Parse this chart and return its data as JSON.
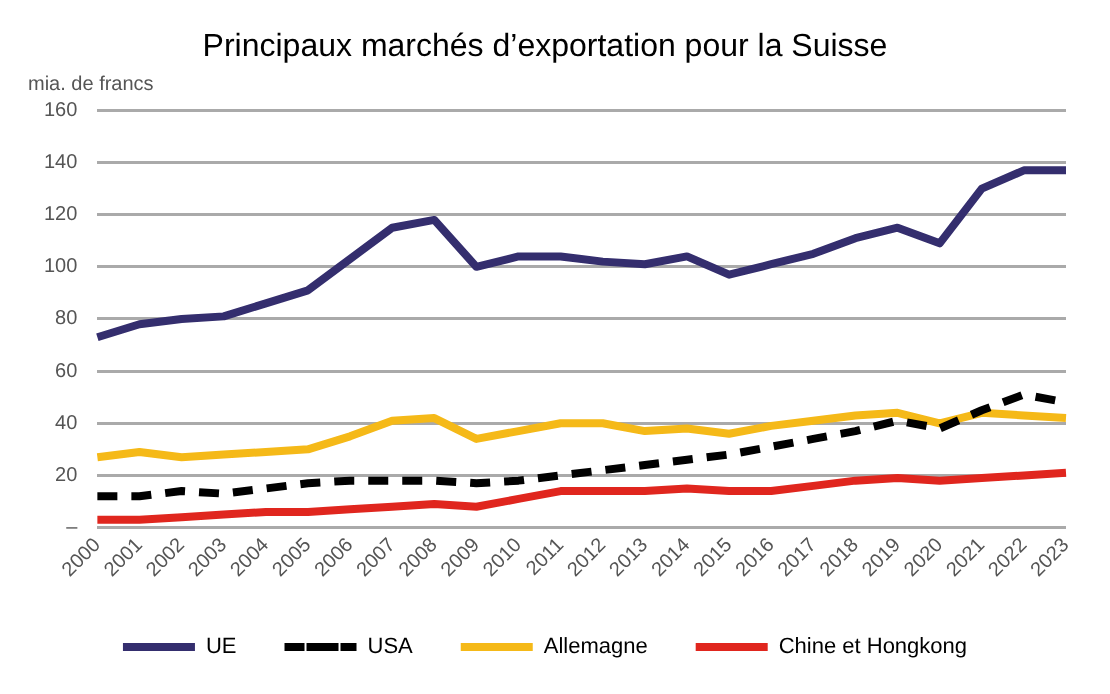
{
  "chart_data": {
    "type": "line",
    "title": "Principaux marchés d’exportation pour la Suisse",
    "ylabel": "mia. de francs",
    "categories": [
      "2000",
      "2001",
      "2002",
      "2003",
      "2004",
      "2005",
      "2006",
      "2007",
      "2008",
      "2009",
      "2010",
      "2011",
      "2012",
      "2013",
      "2014",
      "2015",
      "2016",
      "2017",
      "2018",
      "2019",
      "2020",
      "2021",
      "2022",
      "2023"
    ],
    "series": [
      {
        "name": "UE",
        "color": "#342e6e",
        "values": [
          73,
          78,
          80,
          81,
          86,
          91,
          103,
          115,
          118,
          100,
          104,
          104,
          102,
          101,
          104,
          97,
          101,
          105,
          111,
          115,
          109,
          130,
          137,
          137
        ]
      },
      {
        "name": "USA",
        "color": "#000000",
        "line_style": "dashed",
        "values": [
          12,
          12,
          14,
          13,
          15,
          17,
          18,
          18,
          18,
          17,
          18,
          20,
          22,
          24,
          26,
          28,
          31,
          34,
          37,
          41,
          38,
          45,
          51,
          48
        ]
      },
      {
        "name": "Allemagne",
        "color": "#f5b918",
        "values": [
          27,
          29,
          27,
          28,
          29,
          30,
          35,
          41,
          42,
          34,
          37,
          40,
          40,
          37,
          38,
          36,
          39,
          41,
          43,
          44,
          40,
          44,
          43,
          42
        ]
      },
      {
        "name": "Chine et Hongkong",
        "color": "#e0261e",
        "values": [
          3,
          3,
          4,
          5,
          6,
          6,
          7,
          8,
          9,
          8,
          11,
          14,
          14,
          14,
          15,
          14,
          14,
          16,
          18,
          19,
          18,
          19,
          20,
          21
        ]
      }
    ],
    "ylim": [
      0,
      160
    ],
    "yticks": [
      {
        "value": 0,
        "label": "–"
      },
      20,
      40,
      60,
      80,
      100,
      120,
      140,
      160
    ],
    "grid": "y",
    "legend": "bottom",
    "marker": "none",
    "line_style": "solid"
  }
}
